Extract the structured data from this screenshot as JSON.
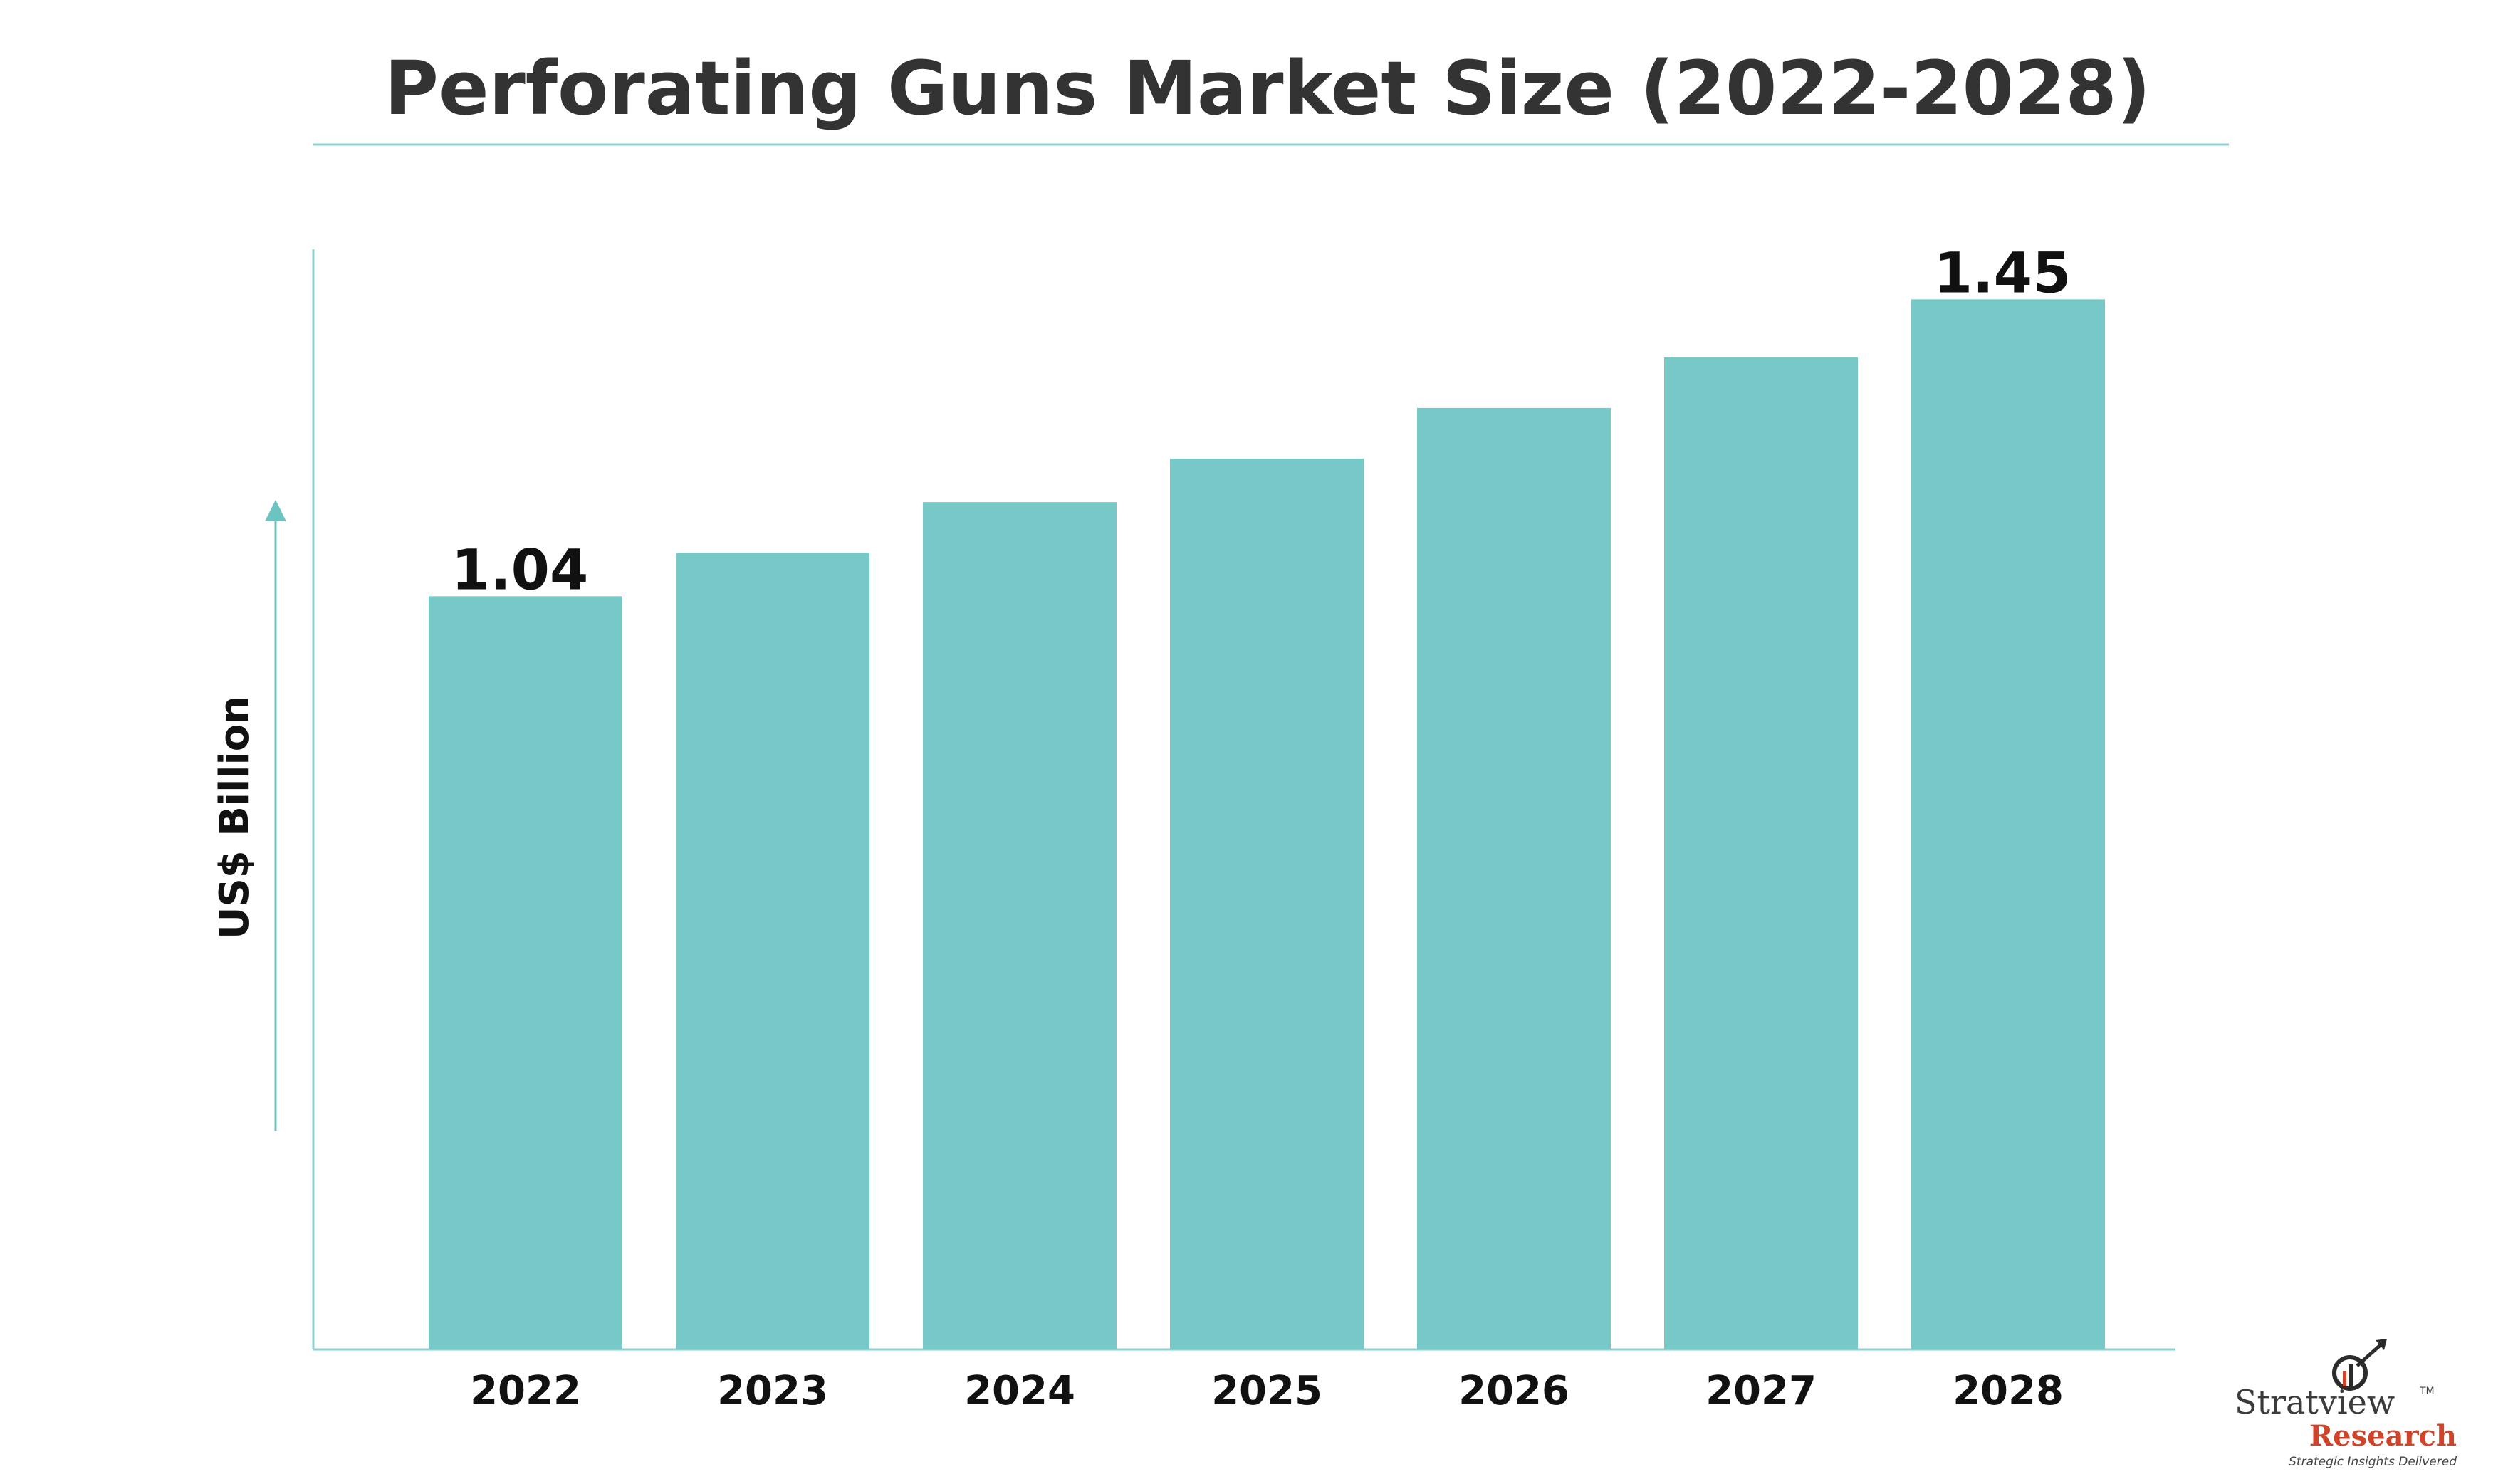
{
  "chart_data": {
    "type": "bar",
    "title": "Perforating Guns Market Size (2022-2028)",
    "ylabel": "US$ Billion",
    "xlabel": "",
    "categories": [
      "2022",
      "2023",
      "2024",
      "2025",
      "2026",
      "2027",
      "2028"
    ],
    "values": [
      1.04,
      1.1,
      1.17,
      1.23,
      1.3,
      1.37,
      1.45
    ],
    "data_labels": [
      {
        "index": 0,
        "text": "1.04"
      },
      {
        "index": 6,
        "text": "1.45"
      }
    ],
    "ylim": [
      0,
      1.85
    ],
    "grid": false,
    "legend": "none",
    "bar_color": "#76c9c7",
    "axis_color": "#8fd0d4"
  },
  "branding": {
    "logo_name": "Stratview",
    "logo_trademark": "TM",
    "logo_subname": "Research",
    "tagline": "Strategic Insights Delivered",
    "logo_icon": "chart-arrow-icon"
  },
  "colors": {
    "title": "#333333",
    "text": "#111111",
    "research_red": "#d0442a"
  }
}
